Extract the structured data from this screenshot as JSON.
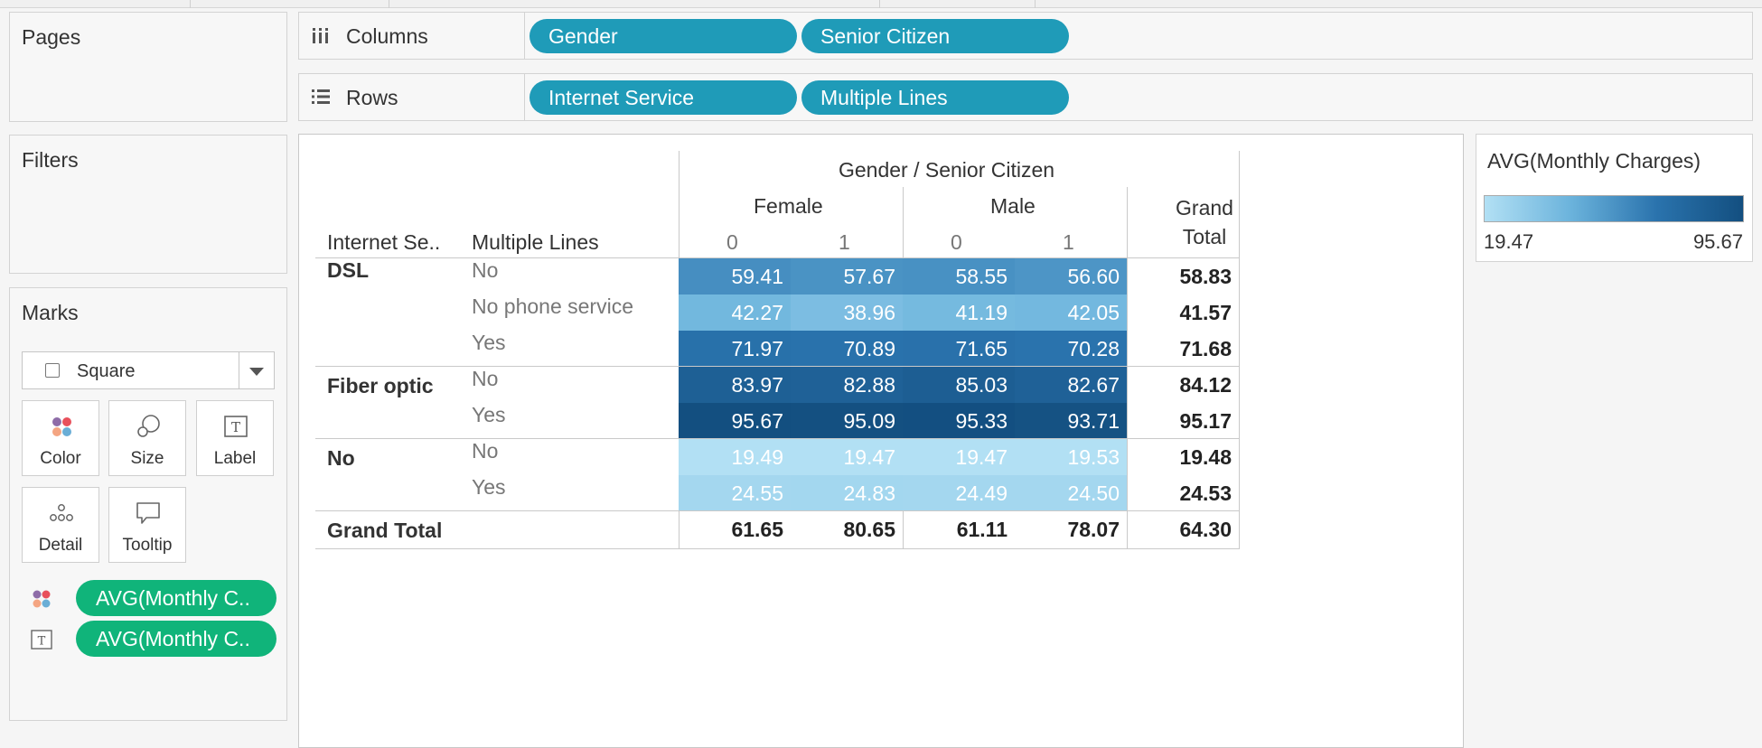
{
  "left_panel": {
    "pages_title": "Pages",
    "filters_title": "Filters",
    "marks_title": "Marks",
    "mark_type": "Square",
    "mark_buttons": [
      {
        "label": "Color",
        "icon": "color-icon"
      },
      {
        "label": "Size",
        "icon": "size-icon"
      },
      {
        "label": "Label",
        "icon": "label-icon"
      },
      {
        "label": "Detail",
        "icon": "detail-icon"
      },
      {
        "label": "Tooltip",
        "icon": "tooltip-icon"
      }
    ],
    "mark_fields": [
      {
        "label": "AVG(Monthly C..",
        "icon": "color-icon"
      },
      {
        "label": "AVG(Monthly C..",
        "icon": "label-icon"
      }
    ]
  },
  "shelves": {
    "columns_label": "Columns",
    "columns_pills": [
      "Gender",
      "Senior Citizen"
    ],
    "rows_label": "Rows",
    "rows_pills": [
      "Internet Service",
      "Multiple Lines"
    ]
  },
  "legend": {
    "title": "AVG(Monthly Charges)",
    "min": "19.47",
    "max": "95.67",
    "colors": [
      "#b2e0f4",
      "#134f80"
    ]
  },
  "crosstab": {
    "col_group_title": "Gender / Senior Citizen",
    "row_header_1": "Internet Se..",
    "row_header_2": "Multiple Lines",
    "genders": [
      "Female",
      "Male"
    ],
    "senior": [
      "0",
      "1"
    ],
    "grand_total_col": [
      "Grand",
      "Total"
    ],
    "groups": [
      {
        "name": "DSL",
        "rows": [
          {
            "label": "No",
            "values": [
              "59.41",
              "57.67",
              "58.55",
              "56.60"
            ],
            "total": "58.83"
          },
          {
            "label": "No phone service",
            "values": [
              "42.27",
              "38.96",
              "41.19",
              "42.05"
            ],
            "total": "41.57"
          },
          {
            "label": "Yes",
            "values": [
              "71.97",
              "70.89",
              "71.65",
              "70.28"
            ],
            "total": "71.68"
          }
        ]
      },
      {
        "name": "Fiber optic",
        "rows": [
          {
            "label": "No",
            "values": [
              "83.97",
              "82.88",
              "85.03",
              "82.67"
            ],
            "total": "84.12"
          },
          {
            "label": "Yes",
            "values": [
              "95.67",
              "95.09",
              "95.33",
              "93.71"
            ],
            "total": "95.17"
          }
        ]
      },
      {
        "name": "No",
        "rows": [
          {
            "label": "No",
            "values": [
              "19.49",
              "19.47",
              "19.47",
              "19.53"
            ],
            "total": "19.48"
          },
          {
            "label": "Yes",
            "values": [
              "24.55",
              "24.83",
              "24.49",
              "24.50"
            ],
            "total": "24.53"
          }
        ]
      }
    ],
    "grand_total_row": {
      "label": "Grand Total",
      "values": [
        "61.65",
        "80.65",
        "61.11",
        "78.07"
      ],
      "total": "64.30"
    }
  }
}
